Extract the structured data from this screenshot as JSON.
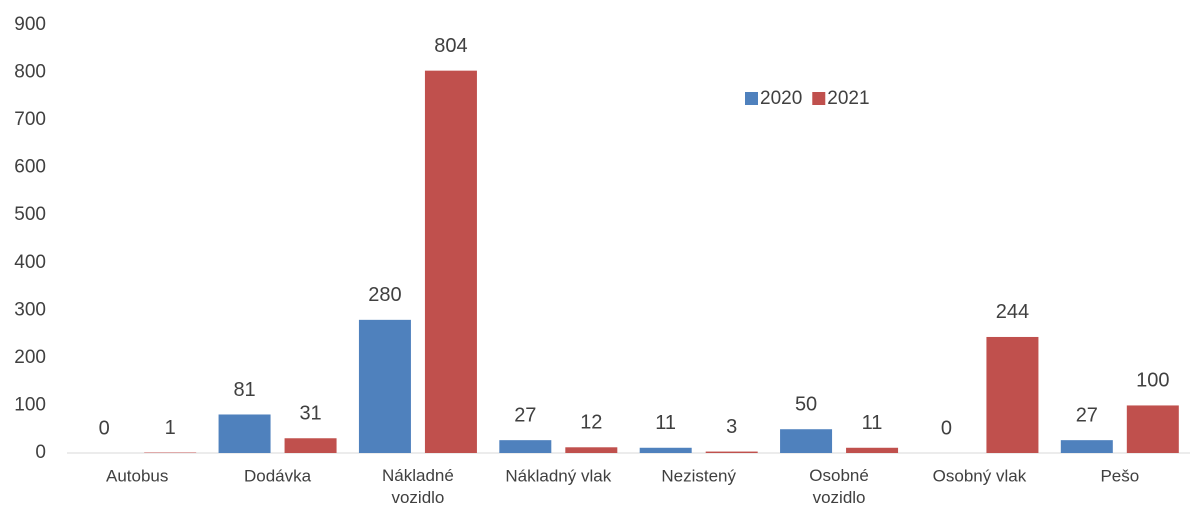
{
  "chart_data": {
    "type": "bar",
    "categories": [
      "Autobus",
      "Dodávka",
      "Nákladné\nvozidlo",
      "Nákladný vlak",
      "Nezistený",
      "Osobné\nvozidlo",
      "Osobný vlak",
      "Pešo"
    ],
    "series": [
      {
        "name": "2020",
        "color": "#4f81bd",
        "values": [
          0,
          81,
          280,
          27,
          11,
          50,
          0,
          27
        ]
      },
      {
        "name": "2021",
        "color": "#c0504d",
        "values": [
          1,
          31,
          804,
          12,
          3,
          11,
          244,
          100
        ]
      }
    ],
    "ylim": [
      0,
      900
    ],
    "yticks": [
      0,
      100,
      200,
      300,
      400,
      500,
      600,
      700,
      800,
      900
    ],
    "grid": false,
    "legend": "top-right"
  }
}
